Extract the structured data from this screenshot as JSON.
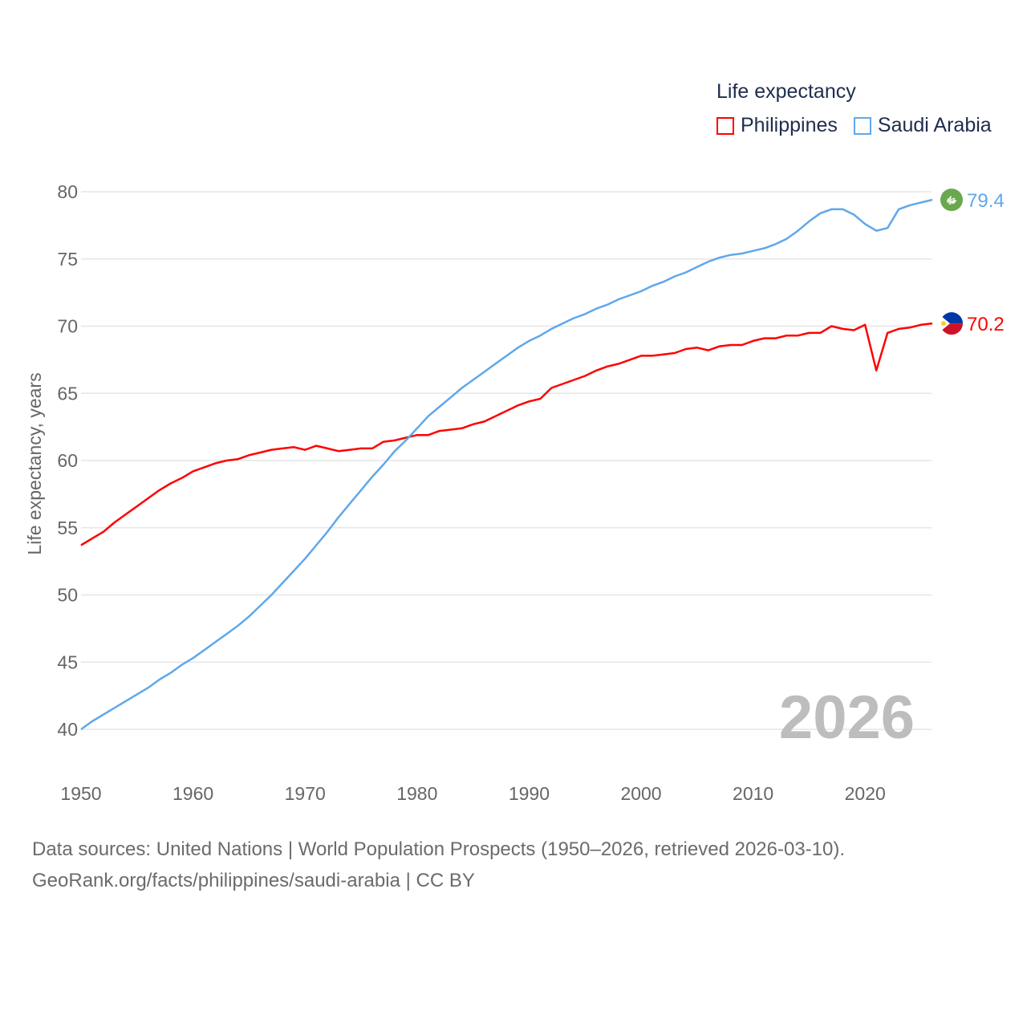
{
  "chart_data": {
    "type": "line",
    "title": "",
    "legend_title": "Life expectancy",
    "legend_position": "top-right",
    "xlabel": "",
    "ylabel": "Life expectancy, years",
    "xlim": [
      1950,
      2026
    ],
    "ylim": [
      40,
      80
    ],
    "xticks": [
      "1950",
      "1960",
      "1970",
      "1980",
      "1990",
      "2000",
      "2010",
      "2020"
    ],
    "yticks": [
      "40",
      "45",
      "50",
      "55",
      "60",
      "65",
      "70",
      "75",
      "80"
    ],
    "grid": true,
    "current_year_label": "2026",
    "x_start": 1950,
    "series": [
      {
        "name": "Philippines",
        "color": "#ff0000",
        "end_label": "70.2",
        "flag": "philippines-flag",
        "values": [
          53.7,
          54.2,
          54.7,
          55.4,
          56.0,
          56.6,
          57.2,
          57.8,
          58.3,
          58.7,
          59.2,
          59.5,
          59.8,
          60.0,
          60.1,
          60.4,
          60.6,
          60.8,
          60.9,
          61.0,
          60.8,
          61.1,
          60.9,
          60.7,
          60.8,
          60.9,
          60.9,
          61.4,
          61.5,
          61.7,
          61.9,
          61.9,
          62.2,
          62.3,
          62.4,
          62.7,
          62.9,
          63.3,
          63.7,
          64.1,
          64.4,
          64.6,
          65.4,
          65.7,
          66.0,
          66.3,
          66.7,
          67.0,
          67.2,
          67.5,
          67.8,
          67.8,
          67.9,
          68.0,
          68.3,
          68.4,
          68.2,
          68.5,
          68.6,
          68.6,
          68.9,
          69.1,
          69.1,
          69.3,
          69.3,
          69.5,
          69.5,
          70.0,
          69.8,
          69.7,
          70.1,
          66.7,
          69.5,
          69.8,
          69.9,
          70.1,
          70.2
        ]
      },
      {
        "name": "Saudi Arabia",
        "color": "#5fa8ea",
        "end_label": "79.4",
        "flag": "saudi-arabia-flag",
        "values": [
          40.0,
          40.6,
          41.1,
          41.6,
          42.1,
          42.6,
          43.1,
          43.7,
          44.2,
          44.8,
          45.3,
          45.9,
          46.5,
          47.1,
          47.7,
          48.4,
          49.2,
          50.0,
          50.9,
          51.8,
          52.7,
          53.7,
          54.7,
          55.8,
          56.8,
          57.8,
          58.8,
          59.7,
          60.7,
          61.5,
          62.4,
          63.3,
          64.0,
          64.7,
          65.4,
          66.0,
          66.6,
          67.2,
          67.8,
          68.4,
          68.9,
          69.3,
          69.8,
          70.2,
          70.6,
          70.9,
          71.3,
          71.6,
          72.0,
          72.3,
          72.6,
          73.0,
          73.3,
          73.7,
          74.0,
          74.4,
          74.8,
          75.1,
          75.3,
          75.4,
          75.6,
          75.8,
          76.1,
          76.5,
          77.1,
          77.8,
          78.4,
          78.7,
          78.7,
          78.3,
          77.6,
          77.1,
          77.3,
          78.7,
          79.0,
          79.2,
          79.4
        ]
      }
    ]
  },
  "footer": {
    "sources": "Data sources: United Nations | World Population Prospects (1950–2026, retrieved 2026-03-10).",
    "credit": "GeoRank.org/facts/philippines/saudi-arabia | CC BY"
  }
}
